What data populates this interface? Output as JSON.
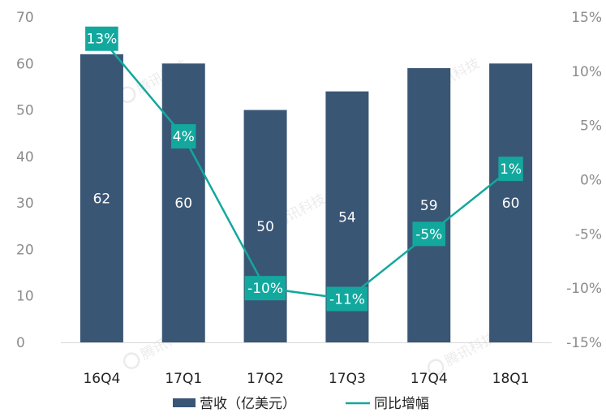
{
  "chart_data": {
    "type": "bar",
    "categories": [
      "16Q4",
      "17Q1",
      "17Q2",
      "17Q3",
      "17Q4",
      "18Q1"
    ],
    "series": [
      {
        "name": "营收（亿美元）",
        "type": "bar",
        "axis": "left",
        "values": [
          62,
          60,
          50,
          54,
          59,
          60
        ],
        "labels": [
          "62",
          "60",
          "50",
          "54",
          "59",
          "60"
        ],
        "color": "#3a5675"
      },
      {
        "name": "同比增幅",
        "type": "line",
        "axis": "right",
        "values": [
          13,
          4,
          -10,
          -11,
          -5,
          1
        ],
        "labels": [
          "13%",
          "4%",
          "-10%",
          "-11%",
          "-5%",
          "1%"
        ],
        "color": "#13a89e"
      }
    ],
    "y_left": {
      "range": [
        0,
        70
      ],
      "ticks": [
        "0",
        "10",
        "20",
        "30",
        "40",
        "50",
        "60",
        "70"
      ]
    },
    "y_right": {
      "range": [
        -15,
        15
      ],
      "ticks": [
        "-15%",
        "-10%",
        "-5%",
        "0%",
        "5%",
        "10%",
        "15%"
      ]
    },
    "legend_position": "bottom",
    "grid": false,
    "watermark": "腾讯科技"
  }
}
